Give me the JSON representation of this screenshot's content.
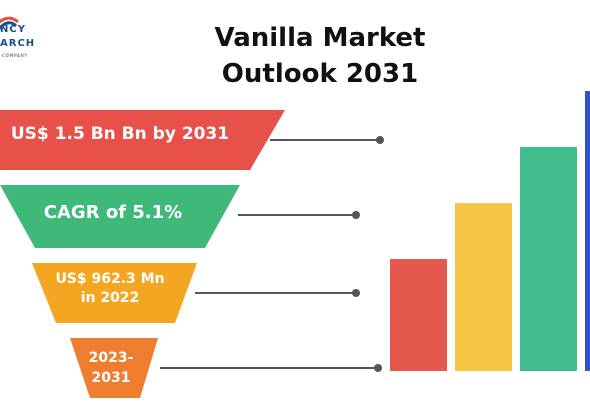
{
  "logo": {
    "line1": "NCY",
    "line2": "ARCH",
    "line3": "COMPANY",
    "colors": [
      "#1b4f91",
      "#e84b3c",
      "#8a8a8a"
    ]
  },
  "title": {
    "line1": "Vanilla Market",
    "line2": "Outlook 2031"
  },
  "funnel": {
    "levels": [
      {
        "label": "US$ 1.5 Bn Bn by 2031",
        "color": "#e8504a"
      },
      {
        "label": "CAGR of 5.1%",
        "color": "#3fb97a"
      },
      {
        "label_line1": "US$ 962.3 Mn",
        "label_line2": "in 2022",
        "color": "#f4a623"
      },
      {
        "label_line1": "2023-",
        "label_line2": "2031",
        "color": "#ee7d2f"
      }
    ],
    "connector_color": "#555555"
  },
  "bars": {
    "values": [
      2,
      3,
      4,
      5
    ],
    "colors": [
      "#e5584e",
      "#f7c443",
      "#3fbb8c",
      "#2f55c8"
    ]
  }
}
